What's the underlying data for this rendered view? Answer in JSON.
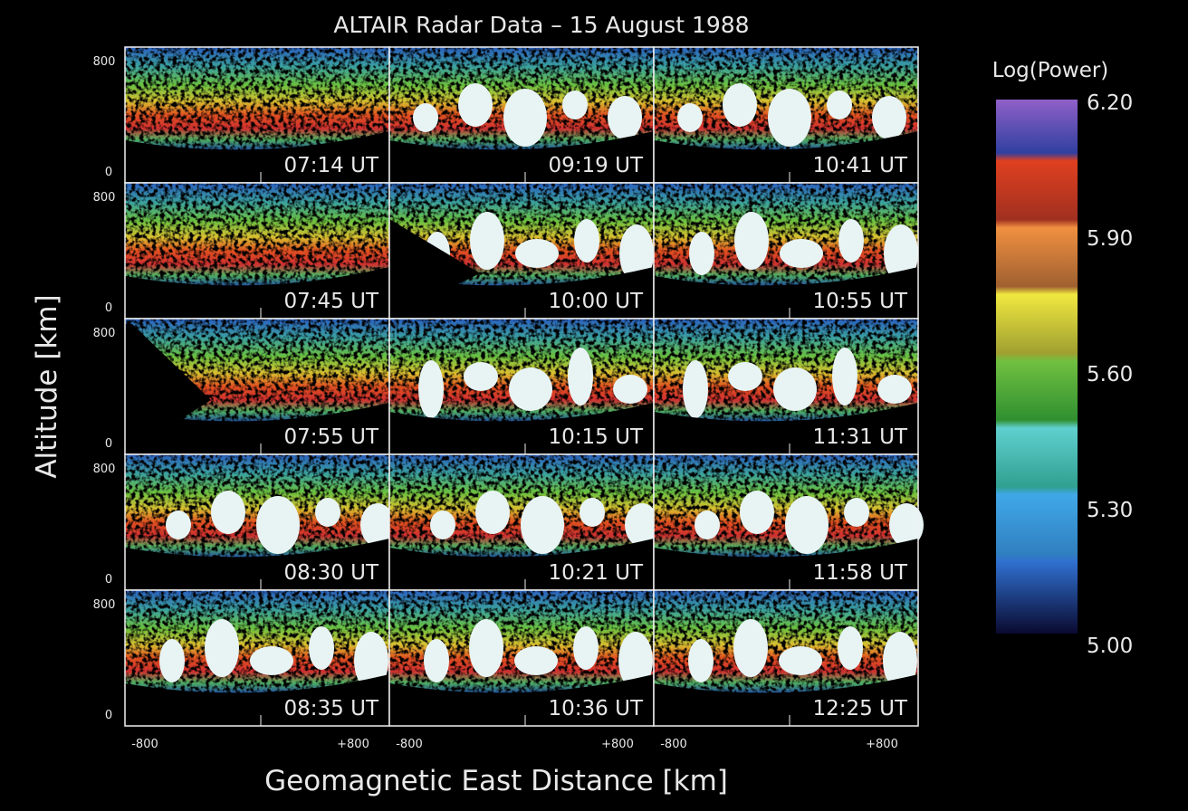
{
  "title": "ALTAIR Radar Data – 15 August 1988",
  "y_axis_label": "Altitude [km]",
  "x_axis_label": "Geomagnetic East Distance [km]",
  "rows": [
    {
      "y_top": "800",
      "y_bottom": "0",
      "panels": [
        "07:14 UT",
        "09:19 UT",
        "10:41 UT"
      ]
    },
    {
      "y_top": "800",
      "y_bottom": "0",
      "panels": [
        "07:45 UT",
        "10:00 UT",
        "10:55 UT"
      ]
    },
    {
      "y_top": "800",
      "y_bottom": "0",
      "panels": [
        "07:55 UT",
        "10:15 UT",
        "11:31 UT"
      ]
    },
    {
      "y_top": "800",
      "y_bottom": "0",
      "panels": [
        "08:30 UT",
        "10:21 UT",
        "11:58 UT"
      ]
    },
    {
      "y_top": "800",
      "y_bottom": "0",
      "panels": [
        "08:35 UT",
        "10:36 UT",
        "12:25 UT"
      ]
    }
  ],
  "columns": [
    {
      "x_left": "-800",
      "x_right": "+800"
    },
    {
      "x_left": "-800",
      "x_right": "+800"
    },
    {
      "x_left": "-800",
      "x_right": "+800"
    }
  ],
  "colorbar": {
    "title": "Log(Power)",
    "ticks": [
      "6.20",
      "5.90",
      "5.60",
      "5.30",
      "5.00"
    ]
  }
}
